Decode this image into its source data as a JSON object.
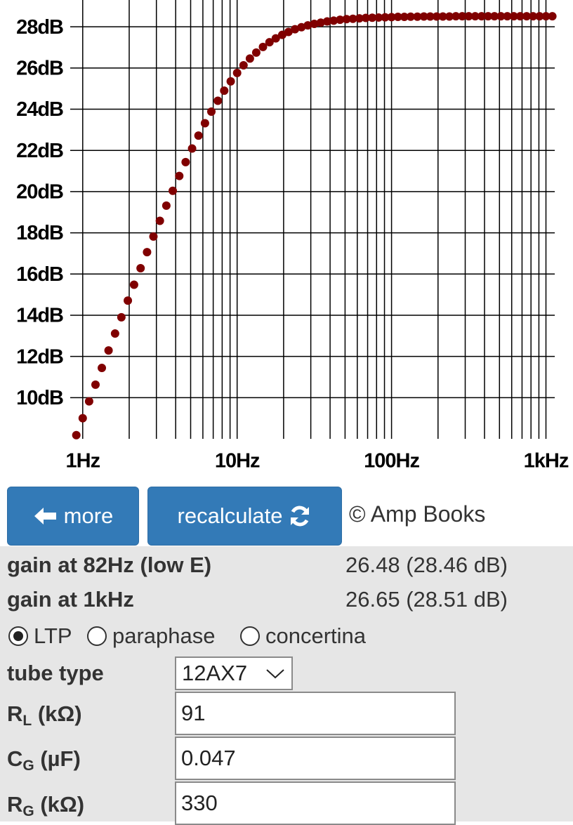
{
  "chart_data": {
    "type": "scatter",
    "x": [
      0.909,
      1,
      1.1,
      1.21,
      1.33,
      1.47,
      1.62,
      1.78,
      1.96,
      2.15,
      2.37,
      2.61,
      2.87,
      3.16,
      3.48,
      3.83,
      4.22,
      4.64,
      5.11,
      5.62,
      6.19,
      6.81,
      7.5,
      8.25,
      9.09,
      10,
      11,
      12.1,
      13.3,
      14.7,
      16.2,
      17.8,
      19.6,
      21.5,
      23.7,
      26.1,
      28.7,
      31.6,
      34.8,
      38.3,
      42.2,
      46.4,
      51.1,
      56.2,
      61.9,
      68.1,
      75,
      82.5,
      90.9,
      100,
      110,
      121,
      133,
      147,
      162,
      178,
      196,
      215,
      237,
      261,
      287,
      316,
      348,
      383,
      422,
      464,
      511,
      562,
      619,
      681,
      750,
      825,
      909,
      1000,
      1100
    ],
    "values": [
      8.18,
      9.0,
      9.82,
      10.63,
      11.44,
      12.29,
      13.11,
      13.9,
      14.71,
      15.48,
      16.28,
      17.06,
      17.82,
      18.58,
      19.32,
      20.04,
      20.76,
      21.43,
      22.09,
      22.72,
      23.32,
      23.88,
      24.41,
      24.9,
      25.35,
      25.76,
      26.13,
      26.46,
      26.75,
      27.02,
      27.25,
      27.44,
      27.61,
      27.75,
      27.88,
      27.98,
      28.07,
      28.14,
      28.2,
      28.26,
      28.3,
      28.34,
      28.37,
      28.39,
      28.41,
      28.43,
      28.44,
      28.45,
      28.46,
      28.47,
      28.48,
      28.48,
      28.49,
      28.49,
      28.5,
      28.5,
      28.5,
      28.5,
      28.5,
      28.51,
      28.51,
      28.51,
      28.51,
      28.51,
      28.51,
      28.51,
      28.51,
      28.51,
      28.51,
      28.51,
      28.51,
      28.51,
      28.51,
      28.51,
      28.51
    ],
    "color": "#800000",
    "x_log_scale": true,
    "xlim": [
      0.83,
      1140
    ],
    "ylim": [
      8,
      29.3
    ],
    "xticks": [
      {
        "value": 1,
        "label": "1Hz"
      },
      {
        "value": 10,
        "label": "10Hz"
      },
      {
        "value": 100,
        "label": "100Hz"
      },
      {
        "value": 1000,
        "label": "1kHz"
      }
    ],
    "x_minor_ticks": [
      2,
      3,
      4,
      5,
      6,
      7,
      8,
      9,
      20,
      30,
      40,
      50,
      60,
      70,
      80,
      90,
      200,
      300,
      400,
      500,
      600,
      700,
      800,
      900
    ],
    "yticks": [
      {
        "value": 10,
        "label": "10dB"
      },
      {
        "value": 12,
        "label": "12dB"
      },
      {
        "value": 14,
        "label": "14dB"
      },
      {
        "value": 16,
        "label": "16dB"
      },
      {
        "value": 18,
        "label": "18dB"
      },
      {
        "value": 20,
        "label": "20dB"
      },
      {
        "value": 22,
        "label": "22dB"
      },
      {
        "value": 24,
        "label": "24dB"
      },
      {
        "value": 26,
        "label": "26dB"
      },
      {
        "value": 28,
        "label": "28dB"
      }
    ],
    "grid": true
  },
  "buttons": {
    "more": "more",
    "recalculate": "recalculate"
  },
  "copyright": "© Amp Books",
  "results": [
    {
      "label": "gain at 82Hz (low E)",
      "value": "26.48 (28.46 dB)"
    },
    {
      "label": "gain at 1kHz",
      "value": "26.65 (28.51 dB)"
    }
  ],
  "topology": {
    "options": [
      "LTP",
      "paraphase",
      "concertina"
    ],
    "selected_index": 0
  },
  "tube_type": {
    "label": "tube type",
    "value": "12AX7"
  },
  "fields": [
    {
      "symbol": "R",
      "subscript": "L",
      "unit": "(kΩ)",
      "value": "91"
    },
    {
      "symbol": "C",
      "subscript": "G",
      "unit": "(µF)",
      "value": "0.047"
    },
    {
      "symbol": "R",
      "subscript": "G",
      "unit": "(kΩ)",
      "value": "330"
    }
  ]
}
